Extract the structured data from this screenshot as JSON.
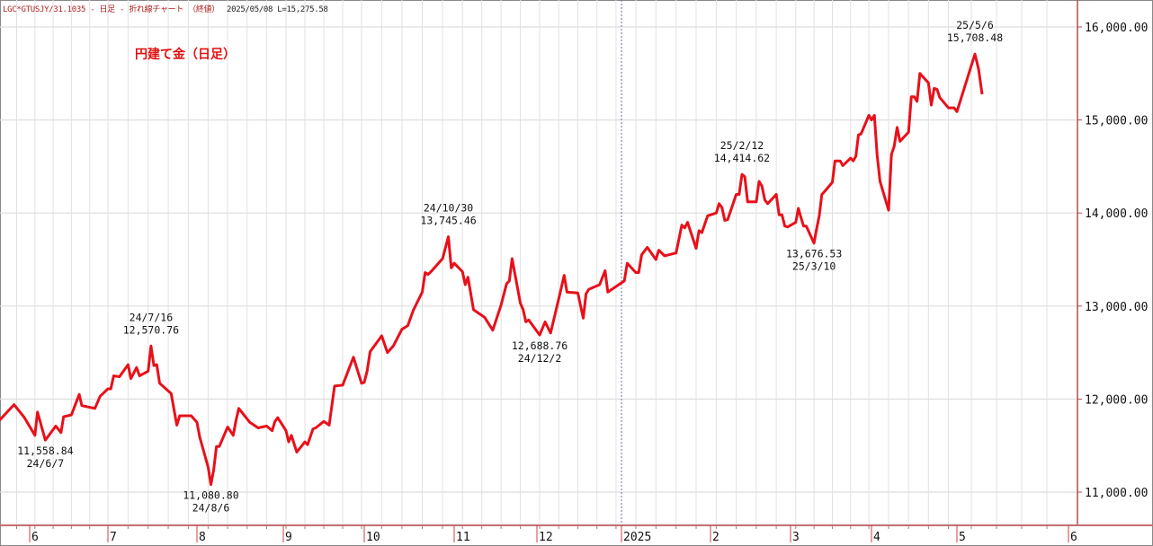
{
  "header": {
    "symbol": "LGC*GTUSJY/31.1035 - 日足 - 折れ線チャート （終値）",
    "meta": "2025/05/08 L=15,275.58"
  },
  "chart_data": {
    "type": "line",
    "title": "円建て金（日足）",
    "xlabel": "",
    "ylabel": "",
    "ylim": [
      10700,
      16300
    ],
    "yticks": [
      11000,
      12000,
      13000,
      14000,
      15000,
      16000
    ],
    "ytick_labels": [
      "11,000.00",
      "12,000.00",
      "13,000.00",
      "14,000.00",
      "15,000.00",
      "16,000.00"
    ],
    "xtick_labels": [
      {
        "date": "2024-06-01",
        "label": "6"
      },
      {
        "date": "2024-07-01",
        "label": "7"
      },
      {
        "date": "2024-08-01",
        "label": "8"
      },
      {
        "date": "2024-09-01",
        "label": "9"
      },
      {
        "date": "2024-10-01",
        "label": "10"
      },
      {
        "date": "2024-11-01",
        "label": "11"
      },
      {
        "date": "2024-12-01",
        "label": "12"
      },
      {
        "date": "2025-01-01",
        "label": "2025"
      },
      {
        "date": "2025-02-01",
        "label": "2"
      },
      {
        "date": "2025-03-01",
        "label": "3"
      },
      {
        "date": "2025-04-01",
        "label": "4"
      },
      {
        "date": "2025-05-01",
        "label": "5"
      },
      {
        "date": "2025-06-01",
        "label": "6"
      }
    ],
    "grid": true,
    "line_color": "#e8101a",
    "series": [
      {
        "points": [
          [
            "2024-05-20",
            11760
          ],
          [
            "2024-05-26",
            11940
          ],
          [
            "2024-05-30",
            11800
          ],
          [
            "2024-06-03",
            11610
          ],
          [
            "2024-06-04",
            11860
          ],
          [
            "2024-06-07",
            11558.84
          ],
          [
            "2024-06-11",
            11710
          ],
          [
            "2024-06-13",
            11640
          ],
          [
            "2024-06-14",
            11810
          ],
          [
            "2024-06-17",
            11830
          ],
          [
            "2024-06-20",
            12050
          ],
          [
            "2024-06-21",
            11930
          ],
          [
            "2024-06-26",
            11900
          ],
          [
            "2024-06-28",
            12030
          ],
          [
            "2024-07-01",
            12110
          ],
          [
            "2024-07-02",
            12110
          ],
          [
            "2024-07-03",
            12250
          ],
          [
            "2024-07-05",
            12240
          ],
          [
            "2024-07-08",
            12370
          ],
          [
            "2024-07-09",
            12220
          ],
          [
            "2024-07-11",
            12340
          ],
          [
            "2024-07-12",
            12250
          ],
          [
            "2024-07-15",
            12300
          ],
          [
            "2024-07-16",
            12570.76
          ],
          [
            "2024-07-17",
            12360
          ],
          [
            "2024-07-18",
            12370
          ],
          [
            "2024-07-19",
            12170
          ],
          [
            "2024-07-23",
            12060
          ],
          [
            "2024-07-25",
            11720
          ],
          [
            "2024-07-26",
            11820
          ],
          [
            "2024-07-30",
            11820
          ],
          [
            "2024-08-01",
            11750
          ],
          [
            "2024-08-02",
            11590
          ],
          [
            "2024-08-05",
            11270
          ],
          [
            "2024-08-06",
            11080.8
          ],
          [
            "2024-08-07",
            11240
          ],
          [
            "2024-08-08",
            11490
          ],
          [
            "2024-08-09",
            11490
          ],
          [
            "2024-08-12",
            11700
          ],
          [
            "2024-08-14",
            11610
          ],
          [
            "2024-08-15",
            11770
          ],
          [
            "2024-08-16",
            11900
          ],
          [
            "2024-08-20",
            11750
          ],
          [
            "2024-08-23",
            11690
          ],
          [
            "2024-08-26",
            11710
          ],
          [
            "2024-08-28",
            11660
          ],
          [
            "2024-08-29",
            11760
          ],
          [
            "2024-08-30",
            11800
          ],
          [
            "2024-09-02",
            11660
          ],
          [
            "2024-09-03",
            11540
          ],
          [
            "2024-09-04",
            11610
          ],
          [
            "2024-09-06",
            11430
          ],
          [
            "2024-09-09",
            11540
          ],
          [
            "2024-09-10",
            11510
          ],
          [
            "2024-09-12",
            11680
          ],
          [
            "2024-09-13",
            11690
          ],
          [
            "2024-09-16",
            11760
          ],
          [
            "2024-09-18",
            11720
          ],
          [
            "2024-09-20",
            12140
          ],
          [
            "2024-09-23",
            12150
          ],
          [
            "2024-09-25",
            12300
          ],
          [
            "2024-09-27",
            12450
          ],
          [
            "2024-09-30",
            12170
          ],
          [
            "2024-10-01",
            12180
          ],
          [
            "2024-10-02",
            12300
          ],
          [
            "2024-10-03",
            12510
          ],
          [
            "2024-10-07",
            12680
          ],
          [
            "2024-10-09",
            12500
          ],
          [
            "2024-10-11",
            12570
          ],
          [
            "2024-10-14",
            12750
          ],
          [
            "2024-10-16",
            12790
          ],
          [
            "2024-10-18",
            12960
          ],
          [
            "2024-10-21",
            13150
          ],
          [
            "2024-10-22",
            13360
          ],
          [
            "2024-10-23",
            13340
          ],
          [
            "2024-10-24",
            13370
          ],
          [
            "2024-10-28",
            13510
          ],
          [
            "2024-10-30",
            13745.46
          ],
          [
            "2024-10-31",
            13410
          ],
          [
            "2024-11-01",
            13460
          ],
          [
            "2024-11-04",
            13370
          ],
          [
            "2024-11-05",
            13230
          ],
          [
            "2024-11-06",
            13310
          ],
          [
            "2024-11-08",
            12960
          ],
          [
            "2024-11-12",
            12880
          ],
          [
            "2024-11-15",
            12740
          ],
          [
            "2024-11-18",
            13010
          ],
          [
            "2024-11-20",
            13240
          ],
          [
            "2024-11-21",
            13270
          ],
          [
            "2024-11-22",
            13510
          ],
          [
            "2024-11-25",
            13030
          ],
          [
            "2024-11-26",
            12960
          ],
          [
            "2024-11-27",
            12830
          ],
          [
            "2024-11-28",
            12850
          ],
          [
            "2024-12-02",
            12688.76
          ],
          [
            "2024-12-04",
            12830
          ],
          [
            "2024-12-06",
            12710
          ],
          [
            "2024-12-09",
            13080
          ],
          [
            "2024-12-11",
            13330
          ],
          [
            "2024-12-12",
            13150
          ],
          [
            "2024-12-16",
            13140
          ],
          [
            "2024-12-18",
            12870
          ],
          [
            "2024-12-19",
            13130
          ],
          [
            "2024-12-20",
            13180
          ],
          [
            "2024-12-24",
            13230
          ],
          [
            "2024-12-26",
            13380
          ],
          [
            "2024-12-27",
            13150
          ],
          [
            "2025-01-02",
            13270
          ],
          [
            "2025-01-03",
            13460
          ],
          [
            "2025-01-06",
            13360
          ],
          [
            "2025-01-07",
            13360
          ],
          [
            "2025-01-08",
            13550
          ],
          [
            "2025-01-10",
            13630
          ],
          [
            "2025-01-13",
            13500
          ],
          [
            "2025-01-14",
            13600
          ],
          [
            "2025-01-16",
            13540
          ],
          [
            "2025-01-20",
            13570
          ],
          [
            "2025-01-22",
            13870
          ],
          [
            "2025-01-23",
            13840
          ],
          [
            "2025-01-24",
            13900
          ],
          [
            "2025-01-27",
            13620
          ],
          [
            "2025-01-28",
            13810
          ],
          [
            "2025-01-29",
            13790
          ],
          [
            "2025-01-31",
            13970
          ],
          [
            "2025-02-03",
            14000
          ],
          [
            "2025-02-04",
            14100
          ],
          [
            "2025-02-05",
            14060
          ],
          [
            "2025-02-06",
            13920
          ],
          [
            "2025-02-07",
            13930
          ],
          [
            "2025-02-10",
            14200
          ],
          [
            "2025-02-11",
            14200
          ],
          [
            "2025-02-12",
            14414.62
          ],
          [
            "2025-02-13",
            14390
          ],
          [
            "2025-02-14",
            14120
          ],
          [
            "2025-02-17",
            14120
          ],
          [
            "2025-02-18",
            14340
          ],
          [
            "2025-02-19",
            14290
          ],
          [
            "2025-02-20",
            14140
          ],
          [
            "2025-02-21",
            14100
          ],
          [
            "2025-02-24",
            14200
          ],
          [
            "2025-02-25",
            13980
          ],
          [
            "2025-02-26",
            13980
          ],
          [
            "2025-02-27",
            13860
          ],
          [
            "2025-02-28",
            13850
          ],
          [
            "2025-03-03",
            13900
          ],
          [
            "2025-03-04",
            14050
          ],
          [
            "2025-03-05",
            13950
          ],
          [
            "2025-03-06",
            13860
          ],
          [
            "2025-03-07",
            13860
          ],
          [
            "2025-03-10",
            13676.53
          ],
          [
            "2025-03-11",
            13830
          ],
          [
            "2025-03-12",
            13970
          ],
          [
            "2025-03-13",
            14200
          ],
          [
            "2025-03-14",
            14230
          ],
          [
            "2025-03-17",
            14330
          ],
          [
            "2025-03-18",
            14560
          ],
          [
            "2025-03-20",
            14560
          ],
          [
            "2025-03-21",
            14510
          ],
          [
            "2025-03-24",
            14590
          ],
          [
            "2025-03-25",
            14560
          ],
          [
            "2025-03-26",
            14610
          ],
          [
            "2025-03-27",
            14840
          ],
          [
            "2025-03-28",
            14850
          ],
          [
            "2025-03-31",
            15050
          ],
          [
            "2025-04-01",
            15000
          ],
          [
            "2025-04-02",
            15050
          ],
          [
            "2025-04-03",
            14620
          ],
          [
            "2025-04-04",
            14340
          ],
          [
            "2025-04-07",
            14030
          ],
          [
            "2025-04-08",
            14630
          ],
          [
            "2025-04-09",
            14720
          ],
          [
            "2025-04-10",
            14920
          ],
          [
            "2025-04-11",
            14770
          ],
          [
            "2025-04-14",
            14870
          ],
          [
            "2025-04-15",
            15250
          ],
          [
            "2025-04-16",
            15250
          ],
          [
            "2025-04-17",
            15200
          ],
          [
            "2025-04-18",
            15500
          ],
          [
            "2025-04-21",
            15400
          ],
          [
            "2025-04-22",
            15160
          ],
          [
            "2025-04-23",
            15340
          ],
          [
            "2025-04-24",
            15330
          ],
          [
            "2025-04-25",
            15240
          ],
          [
            "2025-04-28",
            15130
          ],
          [
            "2025-04-30",
            15130
          ],
          [
            "2025-05-01",
            15090
          ],
          [
            "2025-05-06",
            15708.48
          ],
          [
            "2025-05-07",
            15550
          ],
          [
            "2025-05-08",
            15275.58
          ]
        ]
      }
    ],
    "annotations": [
      {
        "date": "2024-06-07",
        "value": 11558.84,
        "lines": [
          "11,558.84",
          "24/6/7"
        ],
        "position": "below"
      },
      {
        "date": "2024-07-16",
        "value": 12570.76,
        "lines": [
          "24/7/16",
          "12,570.76"
        ],
        "position": "above"
      },
      {
        "date": "2024-08-06",
        "value": 11080.8,
        "lines": [
          "11,080.80",
          "24/8/6"
        ],
        "position": "below"
      },
      {
        "date": "2024-10-30",
        "value": 13745.46,
        "lines": [
          "24/10/30",
          "13,745.46"
        ],
        "position": "above"
      },
      {
        "date": "2024-12-02",
        "value": 12688.76,
        "lines": [
          "12,688.76",
          "24/12/2"
        ],
        "position": "below"
      },
      {
        "date": "2025-02-12",
        "value": 14414.62,
        "lines": [
          "25/2/12",
          "14,414.62"
        ],
        "position": "above"
      },
      {
        "date": "2025-03-10",
        "value": 13676.53,
        "lines": [
          "13,676.53",
          "25/3/10"
        ],
        "position": "below"
      },
      {
        "date": "2025-05-06",
        "value": 15708.48,
        "lines": [
          "25/5/6",
          "15,708.48"
        ],
        "position": "above"
      }
    ]
  }
}
